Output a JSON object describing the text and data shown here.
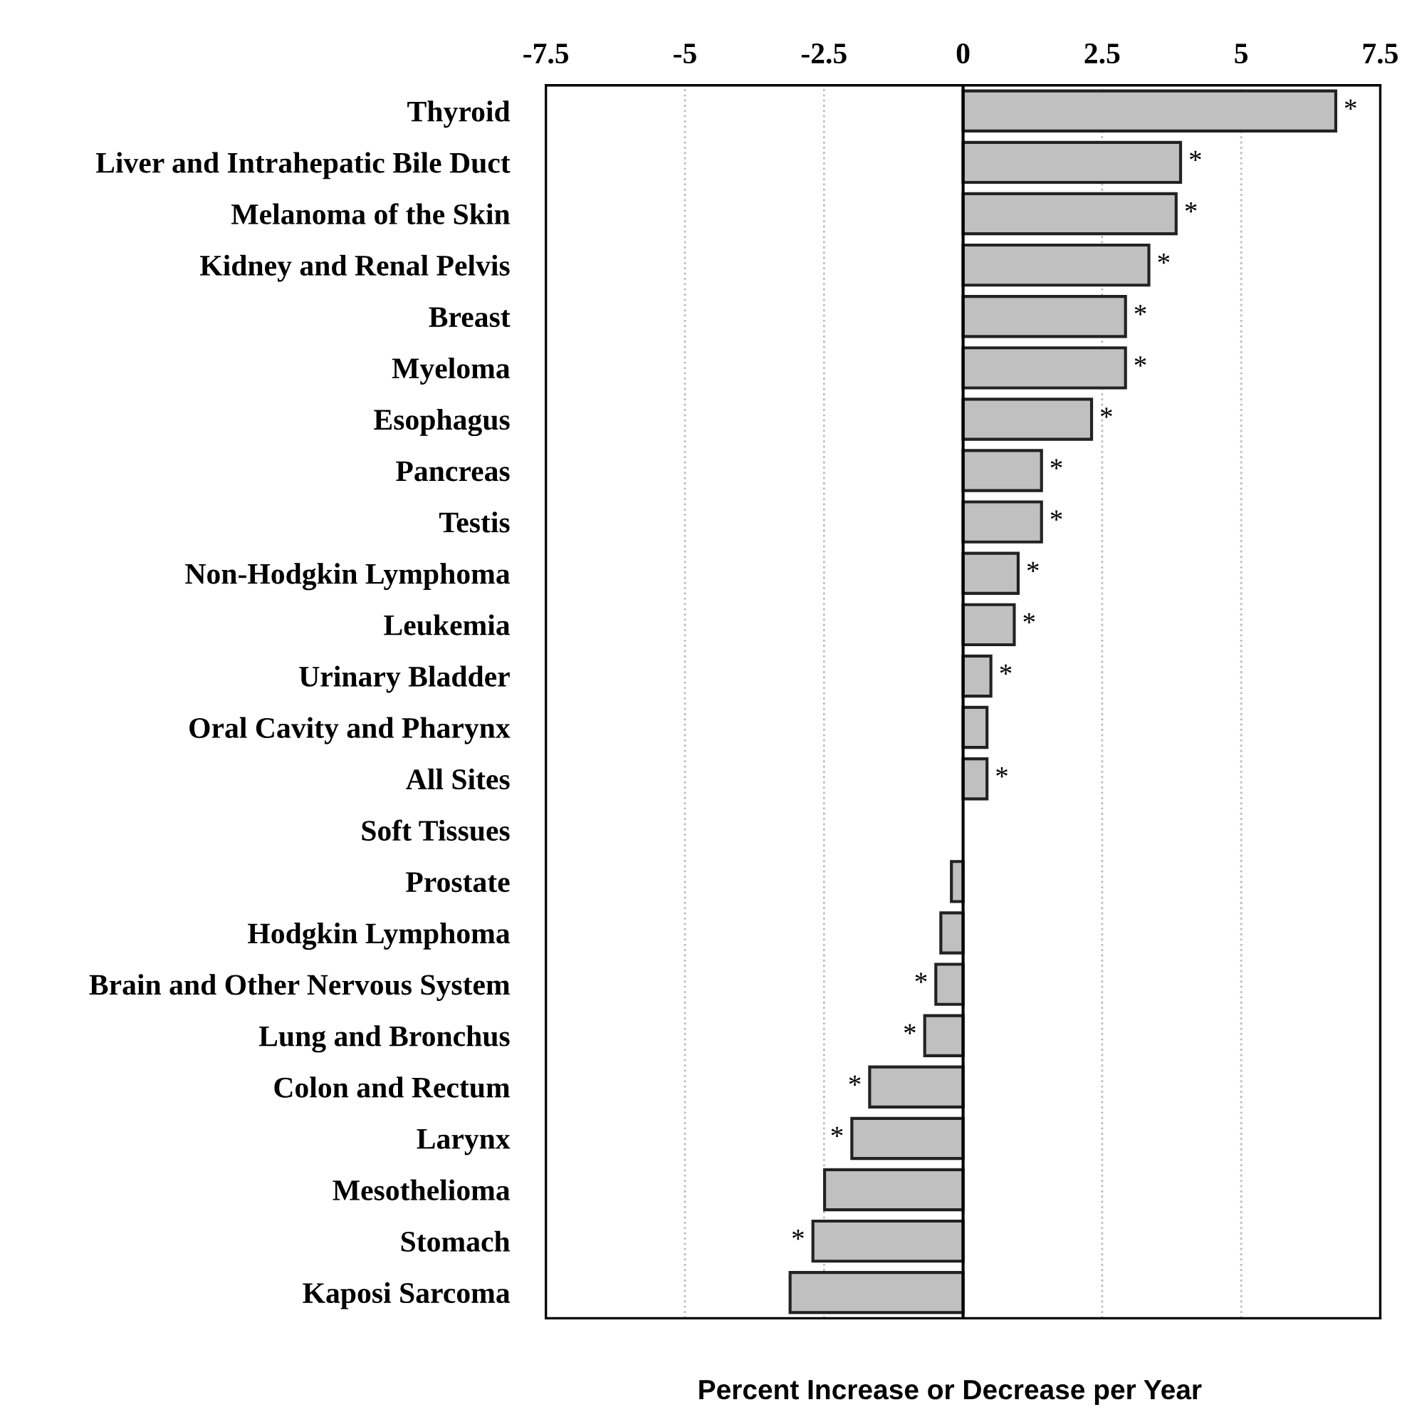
{
  "chart_data": {
    "type": "bar",
    "orientation": "horizontal",
    "xlabel": "Percent Increase or Decrease per Year",
    "categories": [
      "Thyroid",
      "Liver and Intrahepatic Bile Duct",
      "Melanoma of the Skin",
      "Kidney and Renal Pelvis",
      "Breast",
      "Myeloma",
      "Esophagus",
      "Pancreas",
      "Testis",
      "Non-Hodgkin Lymphoma",
      "Leukemia",
      "Urinary Bladder",
      "Oral Cavity and Pharynx",
      "All Sites",
      "Soft Tissues",
      "Prostate",
      "Hodgkin Lymphoma",
      "Brain and Other Nervous System",
      "Lung and Bronchus",
      "Colon and Rectum",
      "Larynx",
      "Mesothelioma",
      "Stomach",
      "Kaposi Sarcoma"
    ],
    "values": [
      6.7,
      3.91,
      3.83,
      3.34,
      2.92,
      2.92,
      2.31,
      1.41,
      1.41,
      0.99,
      0.92,
      0.5,
      0.43,
      0.43,
      0,
      -0.21,
      -0.4,
      -0.49,
      -0.69,
      -1.68,
      -2.0,
      -2.49,
      -2.7,
      -3.11
    ],
    "value_labels": [
      "*",
      "*",
      "*",
      "*",
      "*",
      "*",
      "*",
      "*",
      "*",
      "*",
      "*",
      "*",
      null,
      "*",
      null,
      null,
      null,
      "*",
      "*",
      "*",
      "*",
      null,
      "*",
      null
    ],
    "color": "#c0c0c0",
    "xlim": [
      -7.5,
      7.5
    ],
    "xticks": [
      -7.5,
      -5,
      -2.5,
      0,
      2.5,
      5,
      7.5
    ],
    "grid": "x",
    "ref_lines": [
      {
        "axis": "x",
        "value": 0,
        "color": "#000000"
      }
    ]
  }
}
